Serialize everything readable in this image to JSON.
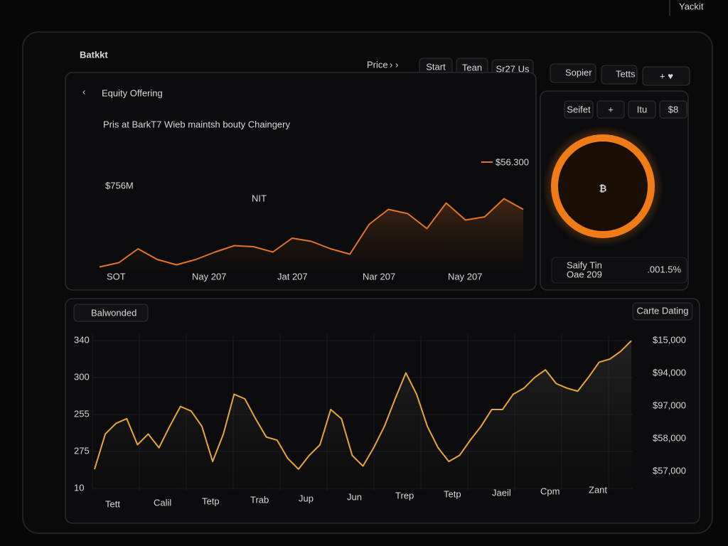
{
  "header": {
    "corner": "Yackit",
    "logo": "Batkkt",
    "nav": [
      "Price",
      "Start",
      "Tean",
      "Sr27 Us"
    ],
    "tools": [
      "Sopier",
      "Tetts"
    ]
  },
  "offering": {
    "back": "Equity Offering",
    "headline": "Pris at BarkT7 Wieb maintsh bouty Chaingery",
    "amount": "$756M",
    "unit": "NIT",
    "legend": "$56.300",
    "chart": {
      "type": "line",
      "color": "#e0752a",
      "ylim": [
        0,
        100
      ],
      "categories": [
        "SOT",
        "Nay 207",
        "Jat 207",
        "Nar 207",
        "Nay 207"
      ],
      "values": [
        3,
        7,
        20,
        10,
        5,
        10,
        17,
        23,
        22,
        17,
        30,
        27,
        20,
        15,
        43,
        57,
        53,
        39,
        63,
        47,
        50,
        67,
        57
      ]
    }
  },
  "side": {
    "buttons": [
      "Seifet",
      "+",
      "Itu",
      "$8"
    ],
    "label": "Saify Tin",
    "sub": "Oae 209",
    "change": ".001.5%"
  },
  "main": {
    "title": "Balwonded",
    "action": "Carte Dating",
    "left_labels": [
      "340",
      "300",
      "255",
      "275",
      "10"
    ],
    "right_labels": [
      "$15,000",
      "$94,000",
      "$97,000",
      "$58,000",
      "$57,000"
    ],
    "chart": {
      "type": "line",
      "color": "#e8a53a",
      "ylim": [
        0,
        100
      ],
      "categories": [
        "Tett",
        "Calil",
        "Tetp",
        "Trab",
        "Jup",
        "Jun",
        "Trep",
        "Tetp",
        "Jaeil",
        "Cpm",
        "Zant"
      ],
      "values": [
        14,
        37,
        44,
        47,
        30,
        37,
        28,
        42,
        55,
        52,
        42,
        19,
        37,
        63,
        60,
        47,
        35,
        33,
        21,
        14,
        23,
        30,
        53,
        47,
        23,
        16,
        28,
        42,
        60,
        77,
        63,
        42,
        28,
        19,
        23,
        33,
        42,
        53,
        53,
        63,
        67,
        74,
        79,
        70,
        67,
        65,
        74,
        84,
        86,
        91,
        98
      ]
    }
  }
}
